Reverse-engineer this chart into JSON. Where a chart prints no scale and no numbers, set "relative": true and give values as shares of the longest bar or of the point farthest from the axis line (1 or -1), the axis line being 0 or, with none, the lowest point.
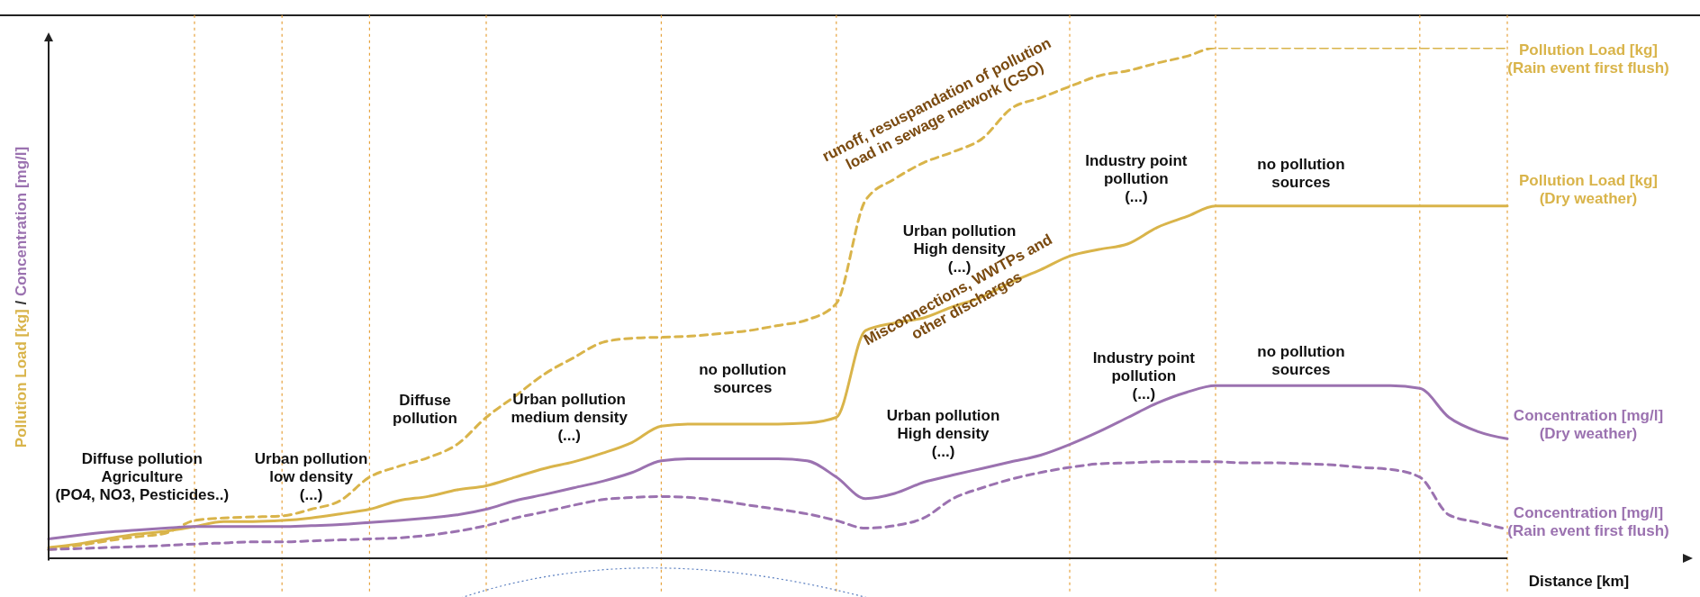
{
  "chart_data": {
    "type": "line",
    "relative": true,
    "xlabel": "Distance [km]",
    "ylabel": "Pollution Load [kg] / Concentration [mg/l]",
    "legend": false,
    "marker": "none",
    "grid": "x",
    "categories": [
      null,
      null,
      null,
      null,
      null,
      null,
      null,
      null,
      null,
      null,
      null,
      null,
      null,
      null,
      null,
      null,
      null,
      null,
      null,
      null,
      null,
      null,
      null,
      null,
      null,
      null,
      null,
      null,
      null,
      null,
      null,
      null,
      null,
      null,
      null,
      null,
      null,
      null,
      null,
      null,
      null,
      null,
      null,
      null,
      null,
      null,
      null,
      null,
      null,
      null,
      null
    ],
    "series": [
      {
        "name": "Pollution Load [kg] (Dry weather)",
        "color": "#d9b44a",
        "line_style": "solid",
        "values": [
          0.021,
          0.028,
          0.038,
          0.047,
          0.053,
          0.062,
          0.072,
          0.072,
          0.074,
          0.079,
          0.087,
          0.096,
          0.113,
          0.121,
          0.134,
          0.142,
          0.159,
          0.176,
          0.189,
          0.206,
          0.227,
          0.259,
          0.263,
          0.263,
          0.263,
          0.263,
          0.265,
          0.276,
          0.446,
          0.461,
          0.471,
          0.493,
          0.512,
          0.541,
          0.565,
          0.592,
          0.605,
          0.616,
          0.648,
          0.669,
          0.69,
          0.69,
          0.69,
          0.69,
          0.69,
          0.69,
          0.69,
          0.69,
          0.69,
          0.69,
          0.69
        ]
      },
      {
        "name": "Pollution Load [kg] (Rain event first flush)",
        "color": "#d9b44a",
        "line_style": "dashed",
        "values": [
          0.017,
          0.025,
          0.034,
          0.042,
          0.049,
          0.074,
          0.079,
          0.081,
          0.083,
          0.096,
          0.113,
          0.159,
          0.18,
          0.197,
          0.223,
          0.276,
          0.318,
          0.361,
          0.393,
          0.423,
          0.431,
          0.433,
          0.435,
          0.44,
          0.446,
          0.456,
          0.467,
          0.499,
          0.701,
          0.743,
          0.775,
          0.796,
          0.822,
          0.881,
          0.902,
          0.924,
          0.945,
          0.955,
          0.97,
          0.983,
          1,
          1,
          1,
          1,
          1,
          1,
          1,
          1,
          1,
          1,
          1
        ]
      },
      {
        "name": "Concentration [mg/l] (Dry weather)",
        "color": "#9b72b0",
        "line_style": "solid",
        "values": [
          0.038,
          0.045,
          0.051,
          0.055,
          0.059,
          0.062,
          0.062,
          0.062,
          0.062,
          0.064,
          0.066,
          0.07,
          0.074,
          0.079,
          0.085,
          0.096,
          0.113,
          0.125,
          0.138,
          0.151,
          0.168,
          0.191,
          0.195,
          0.195,
          0.195,
          0.195,
          0.191,
          0.159,
          0.117,
          0.127,
          0.149,
          0.163,
          0.176,
          0.189,
          0.202,
          0.223,
          0.248,
          0.276,
          0.304,
          0.325,
          0.338,
          0.338,
          0.338,
          0.338,
          0.338,
          0.338,
          0.338,
          0.333,
          0.276,
          0.248,
          0.234
        ]
      },
      {
        "name": "Concentration [mg/l] (Rain event first flush)",
        "color": "#9b72b0",
        "line_style": "dashed",
        "values": [
          0.017,
          0.019,
          0.021,
          0.023,
          0.025,
          0.028,
          0.03,
          0.032,
          0.032,
          0.034,
          0.036,
          0.038,
          0.04,
          0.045,
          0.053,
          0.064,
          0.079,
          0.091,
          0.104,
          0.115,
          0.119,
          0.121,
          0.119,
          0.113,
          0.104,
          0.096,
          0.087,
          0.074,
          0.059,
          0.064,
          0.079,
          0.117,
          0.138,
          0.155,
          0.168,
          0.178,
          0.185,
          0.187,
          0.189,
          0.189,
          0.189,
          0.187,
          0.187,
          0.185,
          0.183,
          0.178,
          0.174,
          0.159,
          0.085,
          0.07,
          0.057
        ]
      }
    ],
    "annotations": [
      "Diffuse pollution\nAgriculture\n(PO4, NO3, Pesticides..)",
      "Urban  pollution\nlow density\n(...)",
      "Diffuse\npollution",
      "Urban  pollution\nmedium density\n(...)",
      "no pollution\nsources",
      "Urban  pollution\nHigh density\n(...)",
      "Industry point\npollution\n(...)",
      "no pollution\nsources",
      "Urban  pollution\nHigh density\n(...)",
      "Industry point\npollution\n(...)",
      "no pollution\nsources",
      "runoff, resuspandation of pollution\nload in sewage network (CSO)",
      "Misconnections, WWTPs and\nother discharges"
    ]
  }
}
